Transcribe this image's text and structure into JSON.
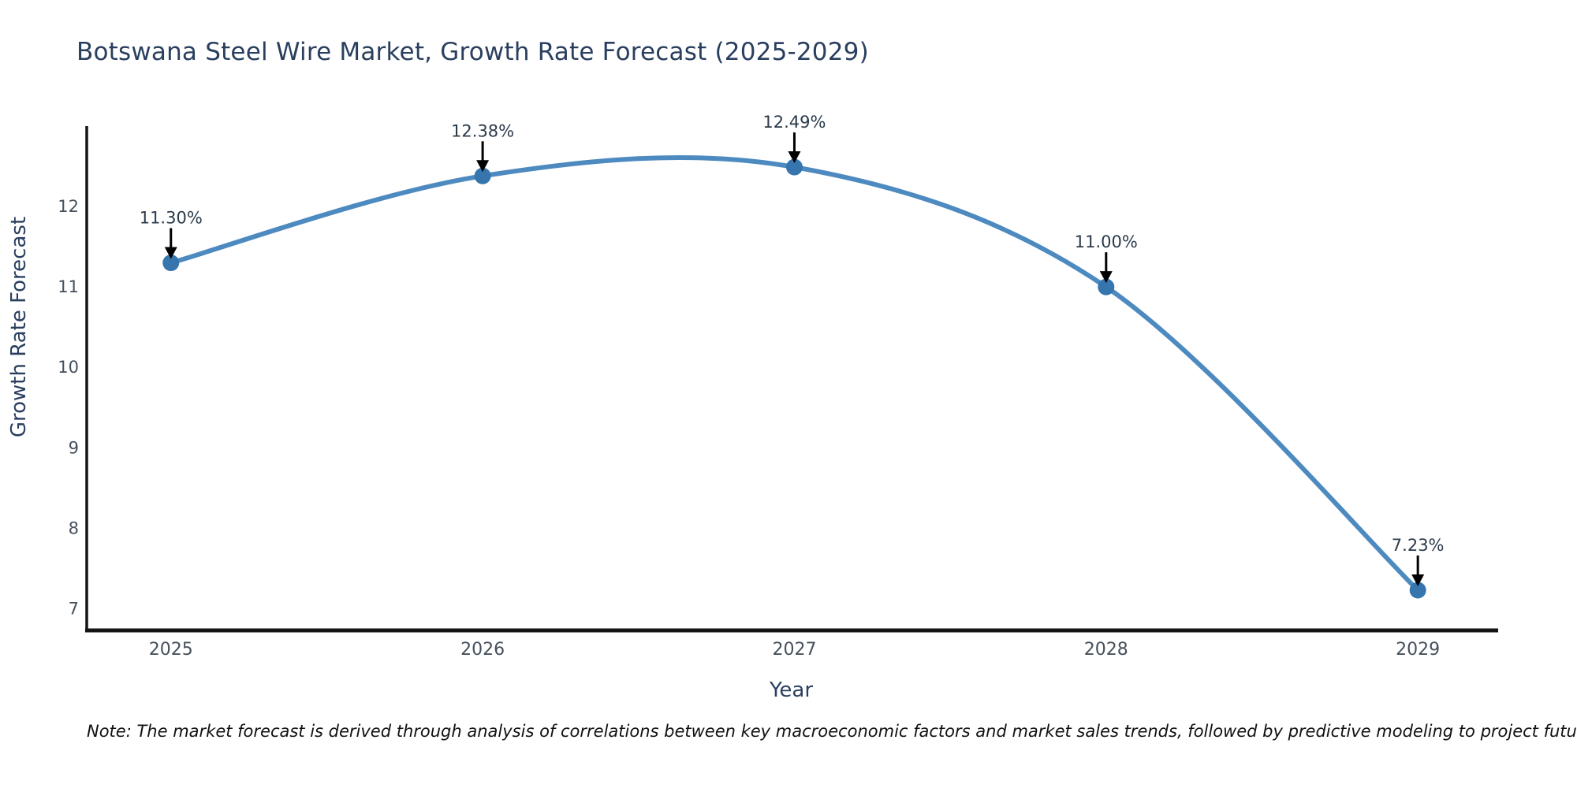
{
  "title": "Botswana Steel Wire Market, Growth Rate Forecast (2025-2029)",
  "note": "Note: The market forecast is derived through analysis of correlations between key macroeconomic factors and market sales trends, followed by predictive modeling to project future sales",
  "chart_data": {
    "type": "line",
    "line_shape": "spline",
    "title": "Botswana Steel Wire Market, Growth Rate Forecast (2025-2029)",
    "xlabel": "Year",
    "ylabel": "Growth Rate Forecast",
    "x": [
      2025,
      2026,
      2027,
      2028,
      2029
    ],
    "values": [
      11.3,
      12.38,
      12.49,
      11.0,
      7.23
    ],
    "point_labels": [
      "11.30%",
      "12.38%",
      "12.49%",
      "11.00%",
      "7.23%"
    ],
    "x_ticks": [
      "2025",
      "2026",
      "2027",
      "2028",
      "2029"
    ],
    "y_ticks": [
      7,
      8,
      9,
      10,
      11,
      12
    ],
    "xlim": [
      2024.73,
      2029.25
    ],
    "ylim": [
      6.73,
      13.0
    ],
    "grid": false,
    "legend": "none",
    "markers": true,
    "annotation_arrows": true
  },
  "colors": {
    "background": "#ffffff",
    "line": "#4d8ac0",
    "marker": "#3675ad",
    "axis_line": "#141414",
    "title_text": "#2a3f5f",
    "axis_title_text": "#2a3f5f",
    "tick_text": "#44505c",
    "annotation_text": "#2b3a4a",
    "arrow": "#000000",
    "note_text": "#111111"
  }
}
